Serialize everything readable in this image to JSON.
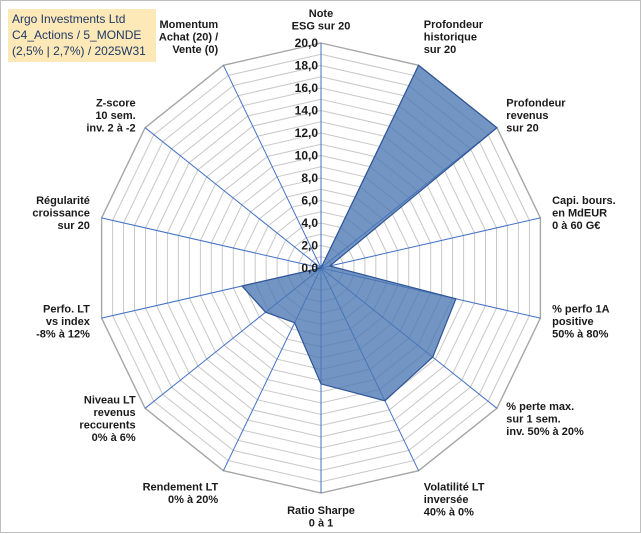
{
  "info_box": {
    "line1": "Argo Investments Ltd",
    "line2": "C4_Actions / 5_MONDE",
    "line3": "(2,5% | 2,7%) / 2025W31"
  },
  "colors": {
    "fill": "#4a77b4",
    "stroke": "#2f5597",
    "spoke": "#4472c4",
    "grid": "#c8c8c8",
    "info_bg": "#fde9b8"
  },
  "chart_data": {
    "type": "radar",
    "title": "",
    "rmin": 0,
    "rmax": 20,
    "tick_step": 1,
    "tick_labels": [
      "0,0",
      "2,0",
      "4,0",
      "6,0",
      "8,0",
      "10,0",
      "12,0",
      "14,0",
      "16,0",
      "18,0",
      "20,0"
    ],
    "grid": true,
    "axes": [
      {
        "label": [
          "Note",
          "ESG sur 20"
        ],
        "value": 0
      },
      {
        "label": [
          "Profondeur",
          "historique",
          "sur 20"
        ],
        "value": 20
      },
      {
        "label": [
          "Profondeur",
          "revenus",
          "sur 20"
        ],
        "value": 20
      },
      {
        "label": [
          "Capi. bours.",
          "en MdEUR",
          "0 à 60 G€"
        ],
        "value": 0.8
      },
      {
        "label": [
          "% perfo 1A",
          "positive",
          "50% à 80%"
        ],
        "value": 12.3
      },
      {
        "label": [
          "% perte max.",
          "sur 1 sem.",
          "inv. 50% à 20%"
        ],
        "value": 12.7
      },
      {
        "label": [
          "Volatilité LT",
          "inversée",
          "40% à 0%"
        ],
        "value": 13.1
      },
      {
        "label": [
          "Ratio Sharpe",
          "0 à 1"
        ],
        "value": 10.3
      },
      {
        "label": [
          "Rendement LT",
          "0% à 20%"
        ],
        "value": 5.4
      },
      {
        "label": [
          "Niveau LT",
          "revenus",
          "reccurents",
          "0% à 6%"
        ],
        "value": 6.3
      },
      {
        "label": [
          "Perfo. LT",
          "vs index",
          "-8% à 12%"
        ],
        "value": 7.2
      },
      {
        "label": [
          "Régularité",
          "croissance",
          "sur 20"
        ],
        "value": 0
      },
      {
        "label": [
          "Z-score",
          "10 sem.",
          "inv. 2 à -2"
        ],
        "value": 0
      },
      {
        "label": [
          "Momentum",
          "Achat (20) /",
          "Vente (0)"
        ],
        "value": 0
      }
    ]
  }
}
